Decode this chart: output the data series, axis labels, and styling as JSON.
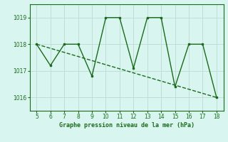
{
  "x": [
    5,
    6,
    7,
    8,
    9,
    10,
    11,
    12,
    13,
    14,
    15,
    16,
    17,
    18
  ],
  "y": [
    1018.0,
    1017.2,
    1018.0,
    1018.0,
    1016.8,
    1019.0,
    1019.0,
    1017.1,
    1019.0,
    1019.0,
    1016.4,
    1018.0,
    1018.0,
    1016.0
  ],
  "trend_x": [
    5,
    18
  ],
  "trend_y": [
    1018.0,
    1016.0
  ],
  "xlim": [
    4.5,
    18.5
  ],
  "ylim": [
    1015.5,
    1019.5
  ],
  "yticks": [
    1016,
    1017,
    1018,
    1019
  ],
  "xticks": [
    5,
    6,
    7,
    8,
    9,
    10,
    11,
    12,
    13,
    14,
    15,
    16,
    17,
    18
  ],
  "xlabel": "Graphe pression niveau de la mer (hPa)",
  "line_color": "#1a6b1a",
  "bg_color": "#d9f5f0",
  "grid_color": "#c0ddd8",
  "marker": "s",
  "marker_size": 2,
  "line_width": 1.0,
  "tick_fontsize": 5.5,
  "xlabel_fontsize": 6.0
}
